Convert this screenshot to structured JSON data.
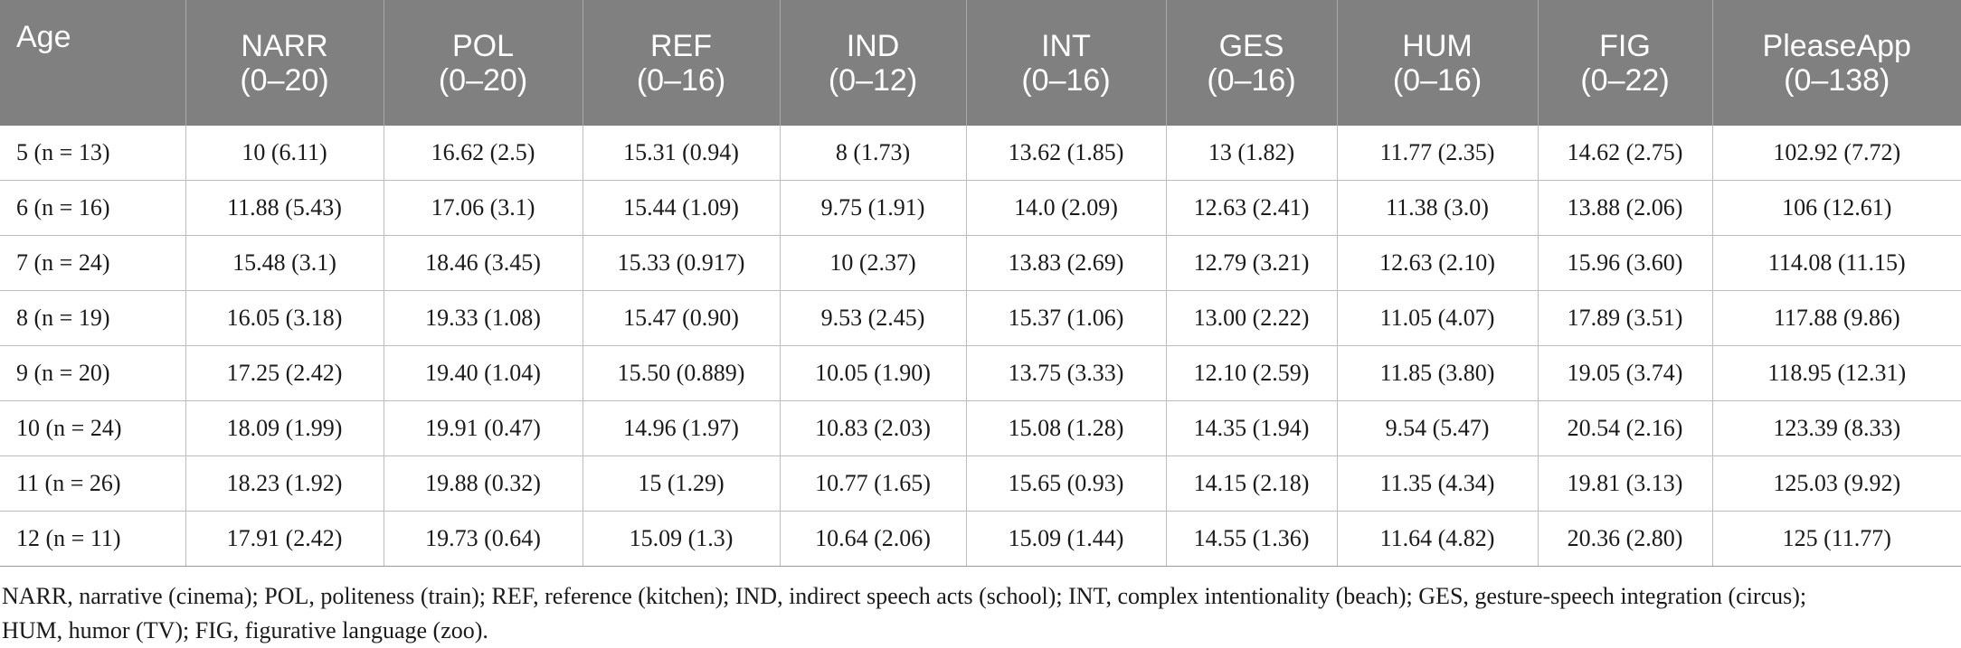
{
  "table": {
    "headers": [
      {
        "l1": "Age",
        "l2": ""
      },
      {
        "l1": "NARR",
        "l2": "(0–20)"
      },
      {
        "l1": "POL",
        "l2": "(0–20)"
      },
      {
        "l1": "REF",
        "l2": "(0–16)"
      },
      {
        "l1": "IND",
        "l2": "(0–12)"
      },
      {
        "l1": "INT",
        "l2": "(0–16)"
      },
      {
        "l1": "GES",
        "l2": "(0–16)"
      },
      {
        "l1": "HUM",
        "l2": "(0–16)"
      },
      {
        "l1": "FIG",
        "l2": "(0–22)"
      },
      {
        "l1": "PleaseApp",
        "l2": "(0–138)"
      }
    ],
    "rows": [
      [
        "5 (n = 13)",
        "10 (6.11)",
        "16.62 (2.5)",
        "15.31 (0.94)",
        "8 (1.73)",
        "13.62 (1.85)",
        "13 (1.82)",
        "11.77 (2.35)",
        "14.62 (2.75)",
        "102.92 (7.72)"
      ],
      [
        "6 (n = 16)",
        "11.88 (5.43)",
        "17.06 (3.1)",
        "15.44 (1.09)",
        "9.75 (1.91)",
        "14.0 (2.09)",
        "12.63 (2.41)",
        "11.38 (3.0)",
        "13.88 (2.06)",
        "106 (12.61)"
      ],
      [
        "7 (n = 24)",
        "15.48 (3.1)",
        "18.46 (3.45)",
        "15.33 (0.917)",
        "10 (2.37)",
        "13.83 (2.69)",
        "12.79 (3.21)",
        "12.63 (2.10)",
        "15.96 (3.60)",
        "114.08 (11.15)"
      ],
      [
        "8 (n = 19)",
        "16.05 (3.18)",
        "19.33 (1.08)",
        "15.47 (0.90)",
        "9.53 (2.45)",
        "15.37 (1.06)",
        "13.00 (2.22)",
        "11.05 (4.07)",
        "17.89 (3.51)",
        "117.88 (9.86)"
      ],
      [
        "9 (n = 20)",
        "17.25 (2.42)",
        "19.40 (1.04)",
        "15.50 (0.889)",
        "10.05 (1.90)",
        "13.75 (3.33)",
        "12.10 (2.59)",
        "11.85 (3.80)",
        "19.05 (3.74)",
        "118.95 (12.31)"
      ],
      [
        "10 (n = 24)",
        "18.09 (1.99)",
        "19.91 (0.47)",
        "14.96 (1.97)",
        "10.83 (2.03)",
        "15.08 (1.28)",
        "14.35 (1.94)",
        "9.54 (5.47)",
        "20.54 (2.16)",
        "123.39 (8.33)"
      ],
      [
        "11 (n = 26)",
        "18.23 (1.92)",
        "19.88 (0.32)",
        "15 (1.29)",
        "10.77 (1.65)",
        "15.65 (0.93)",
        "14.15 (2.18)",
        "11.35 (4.34)",
        "19.81 (3.13)",
        "125.03 (9.92)"
      ],
      [
        "12 (n = 11)",
        "17.91 (2.42)",
        "19.73 (0.64)",
        "15.09 (1.3)",
        "10.64 (2.06)",
        "15.09 (1.44)",
        "14.55 (1.36)",
        "11.64 (4.82)",
        "20.36 (2.80)",
        "125 (11.77)"
      ]
    ]
  },
  "footnote": "NARR, narrative (cinema); POL, politeness (train); REF, reference (kitchen); IND, indirect speech acts (school); INT, complex intentionality (beach); GES, gesture-speech integration (circus); HUM, humor (TV); FIG, figurative language (zoo).",
  "colors": {
    "header_bg": "#808080",
    "header_text": "#ffffff",
    "grid": "#bdbdbd"
  }
}
